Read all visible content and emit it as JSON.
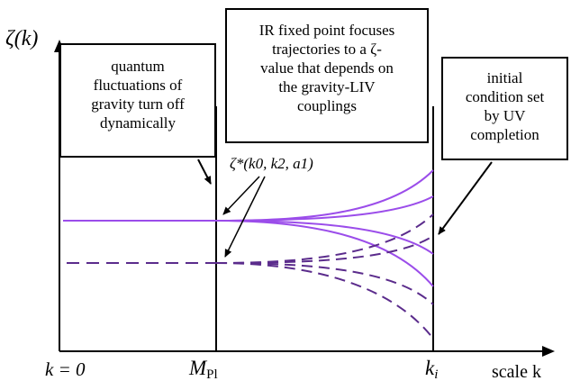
{
  "y_axis_label": "ζ(k)",
  "x_axis_label": "scale k",
  "x_ticks": {
    "zero": "k = 0",
    "planck": "M",
    "planck_sub": "Pl",
    "initial": "k",
    "initial_sub": "i"
  },
  "fixed_point_label": "ζ*(k0, k2, a1)",
  "boxes": {
    "left": [
      "quantum",
      "fluctuations of",
      "gravity turn off",
      "dynamically"
    ],
    "center": [
      "IR fixed point focuses",
      "trajectories to a ζ-",
      "value that depends on",
      "the gravity-LIV",
      "couplings"
    ],
    "right": [
      "initial",
      "condition set",
      "by UV",
      "completion"
    ]
  },
  "colors": {
    "trajectory": "#9b4dea",
    "dashed_trajectory": "#5b2c8c",
    "axis": "#000000"
  },
  "trajectories": {
    "solid_endpoints": [
      "high",
      "mid-high",
      "mid-low",
      "low"
    ],
    "dashed_endpoints": [
      "high",
      "mid-high",
      "mid-low",
      "low"
    ]
  }
}
